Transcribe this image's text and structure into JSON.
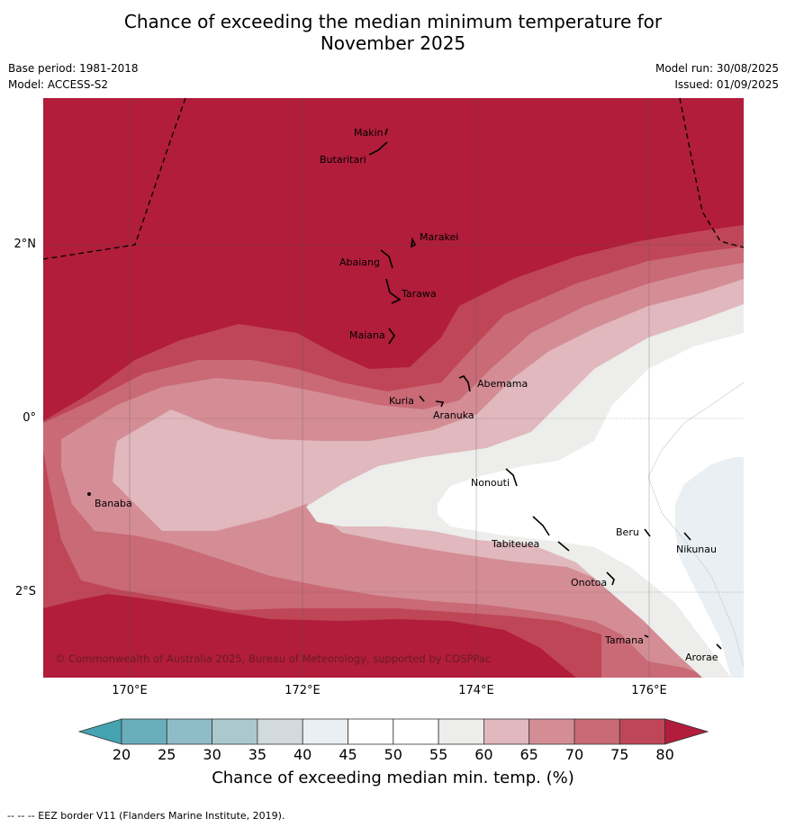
{
  "title_line1": "Chance of exceeding the median minimum temperature for",
  "title_line2": "November 2025",
  "base_period": "Base period: 1981-2018",
  "model": "Model: ACCESS-S2",
  "model_run": "Model run: 30/08/2025",
  "issued": "Issued: 01/09/2025",
  "lat_labels": [
    "2°N",
    "0°",
    "2°S"
  ],
  "lon_labels": [
    "170°E",
    "172°E",
    "174°E",
    "176°E"
  ],
  "places": [
    "Makin",
    "Butaritari",
    "Marakei",
    "Abaiang",
    "Tarawa",
    "Maiana",
    "Abemama",
    "Kuria",
    "Aranuka",
    "Banaba",
    "Nonouti",
    "Tabiteuea",
    "Beru",
    "Nikunau",
    "Onotoa",
    "Tamana",
    "Arorae"
  ],
  "copyright": "© Commonwealth of Australia 2025, Bureau of Meteorology, supported by COSPPac",
  "colorbar": {
    "ticks": [
      "20",
      "25",
      "30",
      "35",
      "40",
      "45",
      "50",
      "55",
      "60",
      "65",
      "70",
      "75",
      "80"
    ],
    "colors": {
      "below_20": "#45a3b2",
      "c20_25": "#6aaebc",
      "c25_30": "#8ebcc7",
      "c30_35": "#abc8ce",
      "c35_40": "#d3dade",
      "c40_45": "#e9eff2",
      "c45_50": "#ffffff",
      "c50_55": "#ffffff",
      "c55_60": "#ededeb",
      "c60_65": "#e0b8bd",
      "c65_70": "#d48d95",
      "c70_75": "#c96a76",
      "c75_80": "#bf4657",
      "above_80": "#b11d3a"
    },
    "label": "Chance of exceeding median min. temp. (%)"
  },
  "footnote": "--  --  -- EEZ border V11 (Flanders Marine Institute, 2019)."
}
